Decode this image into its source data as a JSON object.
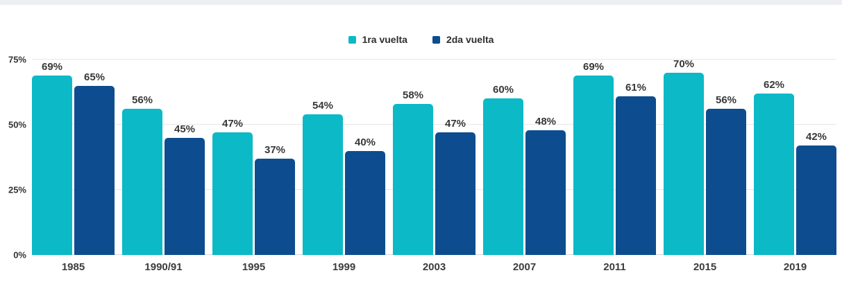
{
  "page": {
    "background": "#ffffff",
    "top_strip_color": "#edeff2"
  },
  "chart_data": {
    "type": "bar",
    "title": "",
    "xlabel": "",
    "ylabel": "",
    "categories": [
      "1985",
      "1990/91",
      "1995",
      "1999",
      "2003",
      "2007",
      "2011",
      "2015",
      "2019"
    ],
    "series": [
      {
        "name": "1ra vuelta",
        "color": "#0cb9c7",
        "values": [
          69,
          56,
          47,
          54,
          58,
          60,
          69,
          70,
          62
        ]
      },
      {
        "name": "2da vuelta",
        "color": "#0d4d8f",
        "values": [
          65,
          45,
          37,
          40,
          47,
          48,
          61,
          56,
          42
        ]
      }
    ],
    "data_label_format": "{value}%",
    "ylim": [
      0,
      75
    ],
    "yticks": [
      0,
      25,
      50,
      75
    ],
    "ytick_labels": [
      "0%",
      "25%",
      "50%",
      "75%"
    ],
    "grid": "horizontal",
    "gridline_color": "#e7e7e7",
    "legend_position": "top-center",
    "value_label_color": "#383838",
    "axis_label_color": "#3c3c3c"
  }
}
